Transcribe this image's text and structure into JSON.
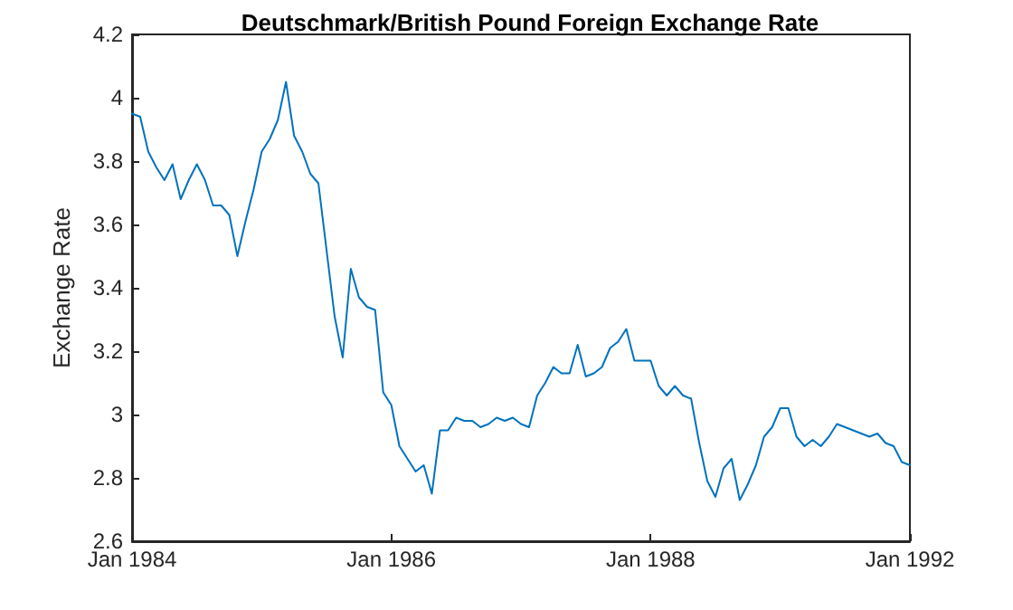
{
  "chart_data": {
    "type": "line",
    "title": "Deutschmark/British Pound Foreign Exchange Rate",
    "ylabel": "Exchange Rate",
    "categories": [
      "Jan 1984",
      null,
      null,
      null,
      null,
      null,
      null,
      null,
      null,
      null,
      null,
      null,
      null,
      null,
      null,
      null,
      null,
      null,
      null,
      null,
      null,
      null,
      null,
      null,
      null,
      null,
      null,
      null,
      null,
      null,
      null,
      null,
      "Jan 1986",
      null,
      null,
      null,
      null,
      null,
      null,
      null,
      null,
      null,
      null,
      null,
      null,
      null,
      null,
      null,
      null,
      null,
      null,
      null,
      null,
      null,
      null,
      null,
      null,
      null,
      null,
      null,
      null,
      null,
      null,
      null,
      "Jan 1988",
      null,
      null,
      null,
      null,
      null,
      null,
      null,
      null,
      null,
      null,
      null,
      null,
      null,
      null,
      null,
      null,
      null,
      null,
      null,
      null,
      null,
      null,
      null,
      null,
      null,
      null,
      null,
      null,
      null,
      null,
      null,
      "Jan 1992"
    ],
    "ylim": [
      2.6,
      4.2
    ],
    "yticks": [
      2.6,
      2.8,
      3,
      3.2,
      3.4,
      3.6,
      3.8,
      4,
      4.2
    ],
    "grid": false,
    "marker": "none",
    "line_style": "solid",
    "series": [
      {
        "color": "#0072bd",
        "values": [
          3.95,
          3.94,
          3.83,
          3.78,
          3.74,
          3.79,
          3.68,
          3.74,
          3.79,
          3.74,
          3.66,
          3.66,
          3.63,
          3.5,
          3.61,
          3.71,
          3.83,
          3.87,
          3.93,
          4.05,
          3.88,
          3.83,
          3.76,
          3.73,
          3.52,
          3.31,
          3.18,
          3.46,
          3.37,
          3.34,
          3.33,
          3.07,
          3.03,
          2.9,
          2.86,
          2.82,
          2.84,
          2.75,
          2.95,
          2.95,
          2.99,
          2.98,
          2.98,
          2.96,
          2.97,
          2.99,
          2.98,
          2.99,
          2.97,
          2.96,
          3.06,
          3.1,
          3.15,
          3.13,
          3.13,
          3.22,
          3.12,
          3.13,
          3.15,
          3.21,
          3.23,
          3.27,
          3.17,
          3.17,
          3.17,
          3.09,
          3.06,
          3.09,
          3.06,
          3.05,
          2.91,
          2.79,
          2.74,
          2.83,
          2.86,
          2.73,
          2.78,
          2.84,
          2.93,
          2.96,
          3.02,
          3.02,
          2.93,
          2.9,
          2.92,
          2.9,
          2.93,
          2.97,
          2.96,
          2.95,
          2.94,
          2.93,
          2.94,
          2.91,
          2.9,
          2.85,
          2.84
        ]
      }
    ]
  }
}
